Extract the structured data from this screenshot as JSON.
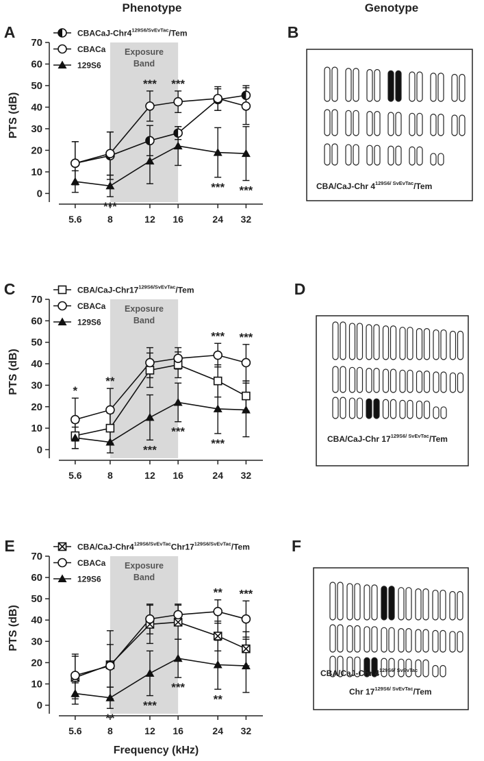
{
  "headers": {
    "phenotype": "Phenotype",
    "genotype": "Genotype"
  },
  "chart_data": [
    {
      "panel": "A",
      "type": "line",
      "y_label": "PTS (dB)",
      "band": {
        "from": 8,
        "to": 16,
        "label": [
          "Exposure",
          "Band"
        ]
      },
      "x": [
        5.6,
        8,
        12,
        16,
        24,
        32
      ],
      "xscale": "log",
      "xlim": [
        4.3,
        38
      ],
      "xticks": [
        5.6,
        8,
        12,
        16,
        24,
        32
      ],
      "ylim": [
        -4,
        70
      ],
      "yticks": [
        0,
        10,
        20,
        30,
        40,
        50,
        60,
        70
      ],
      "series": [
        {
          "name_parts": [
            {
              "text": "CBACaJ-Chr4"
            },
            {
              "sup": "129S6/SvEvTac"
            },
            {
              "text": "/Tem"
            }
          ],
          "marker": "half-circle",
          "color": "#111111",
          "values": [
            14,
            17.5,
            24.5,
            28,
            43.5,
            45.5
          ],
          "errors": [
            10,
            11,
            7,
            3,
            5,
            4.5
          ]
        },
        {
          "name_parts": [
            {
              "text": "CBACa"
            }
          ],
          "marker": "circle",
          "color": "#111111",
          "values": [
            14,
            18.5,
            40.5,
            42.5,
            44,
            40.5
          ],
          "errors": [
            10,
            10,
            7,
            5,
            5.5,
            8.5
          ]
        },
        {
          "name_parts": [
            {
              "text": "129S6"
            }
          ],
          "marker": "triangle",
          "color": "#111111",
          "values": [
            5.5,
            3.5,
            15,
            22,
            19,
            18.5
          ],
          "errors": [
            5,
            5,
            10.5,
            9,
            11.5,
            12.5
          ]
        }
      ],
      "annotations": [
        {
          "text": "***",
          "x": 8,
          "side": "below"
        },
        {
          "text": "***",
          "x": 12,
          "side": "above"
        },
        {
          "text": "***",
          "x": 16,
          "side": "above"
        },
        {
          "text": "***",
          "x": 24,
          "side": "below"
        },
        {
          "text": "***",
          "x": 32,
          "side": "below"
        }
      ]
    },
    {
      "panel": "C",
      "type": "line",
      "y_label": "PTS (dB)",
      "band": {
        "from": 8,
        "to": 16,
        "label": [
          "Exposure",
          "Band"
        ]
      },
      "x": [
        5.6,
        8,
        12,
        16,
        24,
        32
      ],
      "xscale": "log",
      "xlim": [
        4.3,
        38
      ],
      "xticks": [
        5.6,
        8,
        12,
        16,
        24,
        32
      ],
      "ylim": [
        -4,
        70
      ],
      "yticks": [
        0,
        10,
        20,
        30,
        40,
        50,
        60,
        70
      ],
      "series": [
        {
          "name_parts": [
            {
              "text": "CBA/CaJ-Chr17"
            },
            {
              "sup": "129S6/SvEvTac"
            },
            {
              "text": "/Tem"
            }
          ],
          "marker": "square",
          "color": "#111111",
          "values": [
            6.5,
            10,
            37,
            39.5,
            32,
            25
          ],
          "errors": [
            6,
            7,
            8,
            6,
            7.5,
            7
          ]
        },
        {
          "name_parts": [
            {
              "text": "CBACa"
            }
          ],
          "marker": "circle",
          "color": "#111111",
          "values": [
            14,
            18.5,
            40.5,
            42.5,
            44,
            40.5
          ],
          "errors": [
            10,
            10,
            7,
            5,
            5.5,
            8.5
          ]
        },
        {
          "name_parts": [
            {
              "text": "129S6"
            }
          ],
          "marker": "triangle",
          "color": "#111111",
          "values": [
            5.5,
            3.5,
            15,
            22,
            19,
            18.5
          ],
          "errors": [
            5,
            5,
            10.5,
            9,
            11.5,
            12.5
          ]
        }
      ],
      "annotations": [
        {
          "text": "*",
          "x": 5.6,
          "side": "above"
        },
        {
          "text": "**",
          "x": 8,
          "side": "above"
        },
        {
          "text": "***",
          "x": 12,
          "side": "below"
        },
        {
          "text": "***",
          "x": 16,
          "side": "below"
        },
        {
          "text": "***",
          "x": 24,
          "side": "above"
        },
        {
          "text": "***",
          "x": 24,
          "side": "below"
        },
        {
          "text": "***",
          "x": 32,
          "side": "above"
        }
      ]
    },
    {
      "panel": "E",
      "type": "line",
      "y_label": "PTS (dB)",
      "x_label": "Frequency (kHz)",
      "band": {
        "from": 8,
        "to": 16,
        "label": [
          "Exposure",
          "Band"
        ]
      },
      "x": [
        5.6,
        8,
        12,
        16,
        24,
        32
      ],
      "xscale": "log",
      "xlim": [
        4.3,
        38
      ],
      "xticks": [
        5.6,
        8,
        12,
        16,
        24,
        32
      ],
      "ylim": [
        -4,
        70
      ],
      "yticks": [
        0,
        10,
        20,
        30,
        40,
        50,
        60,
        70
      ],
      "series": [
        {
          "name_parts": [
            {
              "text": "CBA/CaJ-Chr4"
            },
            {
              "sup": "129S6/SvEvTac"
            },
            {
              "text": "Chr17"
            },
            {
              "sup": "129S6/SvEvTac"
            },
            {
              "text": "/Tem"
            }
          ],
          "marker": "crossed-square",
          "color": "#111111",
          "values": [
            13,
            19,
            38,
            39,
            32.5,
            26.5
          ],
          "errors": [
            10,
            16,
            9,
            8,
            7,
            8
          ]
        },
        {
          "name_parts": [
            {
              "text": "CBACa"
            }
          ],
          "marker": "circle",
          "color": "#111111",
          "values": [
            14,
            18.5,
            40.5,
            42.5,
            44,
            40.5
          ],
          "errors": [
            10,
            10,
            7,
            5,
            5.5,
            8.5
          ]
        },
        {
          "name_parts": [
            {
              "text": "129S6"
            }
          ],
          "marker": "triangle",
          "color": "#111111",
          "values": [
            5.5,
            3.5,
            15,
            22,
            19,
            18.5
          ],
          "errors": [
            5,
            5,
            10.5,
            9,
            11.5,
            12.5
          ]
        }
      ],
      "annotations": [
        {
          "text": "**",
          "x": 8,
          "side": "below"
        },
        {
          "text": "***",
          "x": 12,
          "side": "below"
        },
        {
          "text": "***",
          "x": 16,
          "side": "below"
        },
        {
          "text": "**",
          "x": 24,
          "side": "above"
        },
        {
          "text": "**",
          "x": 24,
          "side": "below"
        },
        {
          "text": "***",
          "x": 32,
          "side": "above"
        }
      ]
    }
  ],
  "genotypes": [
    {
      "panel": "B",
      "lines": [
        [
          {
            "text": "CBA/CaJ-Chr 4"
          },
          {
            "sup": "129S6/ SvEvTac"
          },
          {
            "text": "/Tem"
          }
        ]
      ]
    },
    {
      "panel": "D",
      "lines": [
        [
          {
            "text": "CBA/CaJ-Chr 17"
          },
          {
            "sup": "129S6/ SvEvTac"
          },
          {
            "text": "/Tem"
          }
        ]
      ]
    },
    {
      "panel": "F",
      "lines": [
        [
          {
            "text": "CBA/CaJ-Chr 4"
          },
          {
            "sup": "129S6/ SvEvTac"
          }
        ],
        [
          {
            "text": "Chr 17"
          },
          {
            "sup": "129S6/ SvEvTac"
          },
          {
            "text": "/Tem"
          }
        ]
      ]
    }
  ]
}
